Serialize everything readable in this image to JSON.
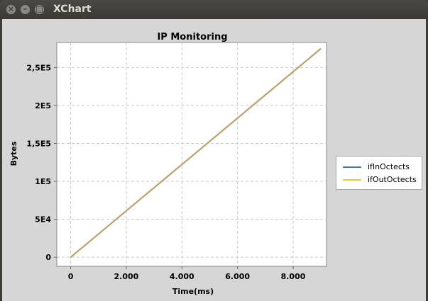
{
  "window": {
    "title": "XChart",
    "controls": [
      {
        "name": "close",
        "glyph": "×"
      },
      {
        "name": "minimize",
        "glyph": "–"
      },
      {
        "name": "maximize",
        "glyph": "□"
      }
    ]
  },
  "colors": {
    "plot_background": "#ffffff",
    "chart_background": "#d6d6d6",
    "grid": "#c8c8c8",
    "ifInOctects": "#4a6fd8",
    "ifOutOctects": "#f4c24b",
    "overlap": "#c5a163"
  },
  "chart_data": {
    "type": "line",
    "title": "IP Monitoring",
    "xlabel": "Time(ms)",
    "ylabel": "Bytes",
    "xlim": [
      -500,
      9200
    ],
    "ylim": [
      -12000,
      283000
    ],
    "xticks": [
      0,
      2000,
      4000,
      6000,
      8000
    ],
    "xtick_labels": [
      "0",
      "2.000",
      "4.000",
      "6.000",
      "8.000"
    ],
    "yticks": [
      0,
      50000,
      100000,
      150000,
      200000,
      250000
    ],
    "ytick_labels": [
      "0",
      "5E4",
      "1E5",
      "1,5E5",
      "2E5",
      "2,5E5"
    ],
    "grid": true,
    "legend_position": "right",
    "series": [
      {
        "name": "ifInOctects",
        "x": [
          0,
          9000
        ],
        "y": [
          0,
          275000
        ]
      },
      {
        "name": "ifOutOctects",
        "x": [
          0,
          9000
        ],
        "y": [
          0,
          275000
        ]
      }
    ]
  }
}
